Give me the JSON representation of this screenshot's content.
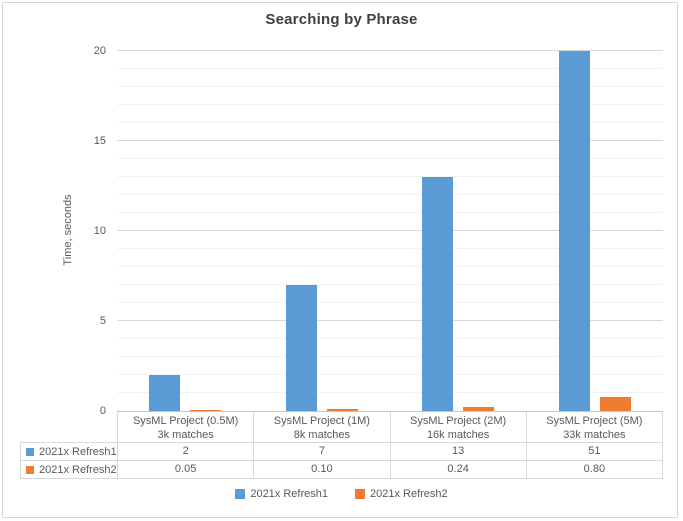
{
  "chart_data": {
    "type": "bar",
    "title": "Searching by Phrase",
    "ylabel": "Time, seconds",
    "ylim": [
      0,
      20
    ],
    "y_major_step": 5,
    "y_minor_step": 1,
    "ytick_labels": [
      "0",
      "5",
      "10",
      "15",
      "20"
    ],
    "grid": true,
    "legend_position": "bottom",
    "data_table": true,
    "categories": [
      {
        "line1": "SysML Project (0.5M)",
        "line2": "3k matches"
      },
      {
        "line1": "SysML Project (1M)",
        "line2": "8k matches"
      },
      {
        "line1": "SysML Project (2M)",
        "line2": "16k matches"
      },
      {
        "line1": "SysML Project (5M)",
        "line2": "33k matches"
      }
    ],
    "series": [
      {
        "name": "2021x Refresh1",
        "color": "#5B9BD5",
        "values": [
          2,
          7,
          13,
          51
        ],
        "value_labels": [
          "2",
          "7",
          "13",
          "51"
        ]
      },
      {
        "name": "2021x Refresh2",
        "color": "#ED7D31",
        "values": [
          0.05,
          0.1,
          0.24,
          0.8
        ],
        "value_labels": [
          "0.05",
          "0.10",
          "0.24",
          "0.80"
        ]
      }
    ]
  },
  "colors": {
    "grid_minor": "#F2F2F2",
    "grid_major": "#D9D9D9",
    "axis_line": "#C6C6C6",
    "text": "#595959",
    "title_text": "#414141",
    "chart_border": "#D6D6D6"
  }
}
